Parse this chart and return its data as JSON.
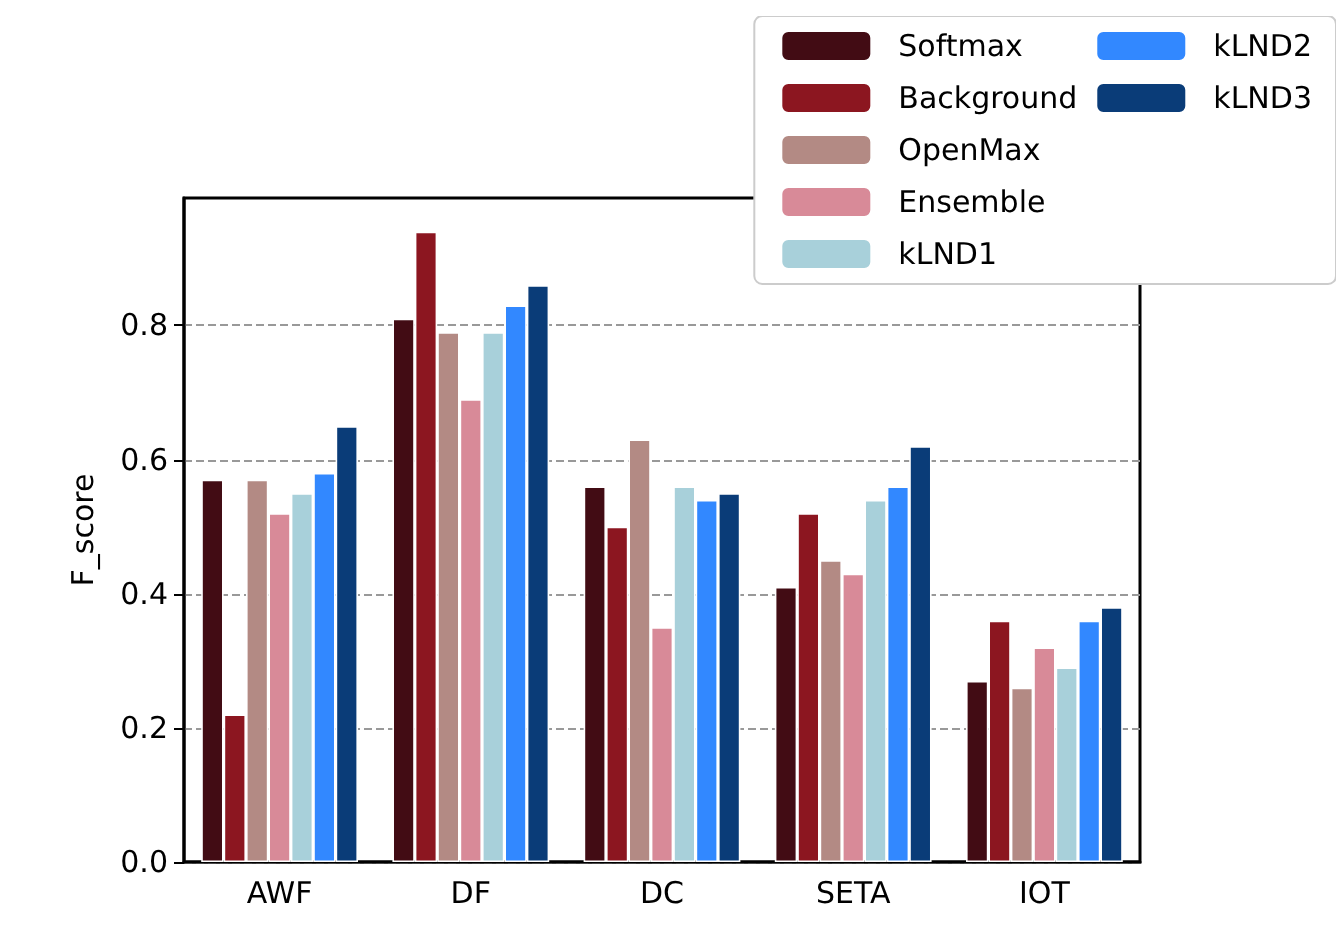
{
  "chart_data": {
    "type": "bar",
    "ylabel": "F_score",
    "categories": [
      "AWF",
      "DF",
      "DC",
      "SETA",
      "IOT"
    ],
    "series": [
      {
        "name": "Softmax",
        "color": "#420c14",
        "values": [
          0.57,
          0.81,
          0.56,
          0.41,
          0.27
        ]
      },
      {
        "name": "Background",
        "color": "#8c1620",
        "values": [
          0.22,
          0.94,
          0.5,
          0.52,
          0.36
        ]
      },
      {
        "name": "OpenMax",
        "color": "#b38a84",
        "values": [
          0.57,
          0.79,
          0.63,
          0.45,
          0.26
        ]
      },
      {
        "name": "Ensemble",
        "color": "#d88a98",
        "values": [
          0.52,
          0.69,
          0.35,
          0.43,
          0.32
        ]
      },
      {
        "name": "kLND1",
        "color": "#a8d0da",
        "values": [
          0.55,
          0.79,
          0.56,
          0.54,
          0.29
        ]
      },
      {
        "name": "kLND2",
        "color": "#3288ff",
        "values": [
          0.58,
          0.83,
          0.54,
          0.56,
          0.36
        ]
      },
      {
        "name": "kLND3",
        "color": "#0a3c78",
        "values": [
          0.65,
          0.86,
          0.55,
          0.62,
          0.38
        ]
      }
    ],
    "ylim": [
      0,
      0.99
    ],
    "yticks": [
      {
        "value": 0,
        "label": "0.0"
      },
      {
        "value": 0.2,
        "label": "0.2"
      },
      {
        "value": 0.4,
        "label": "0.4"
      },
      {
        "value": 0.6,
        "label": "0.6"
      },
      {
        "value": 0.8,
        "label": "0.8"
      }
    ],
    "grid": "y",
    "legend": "top right"
  }
}
